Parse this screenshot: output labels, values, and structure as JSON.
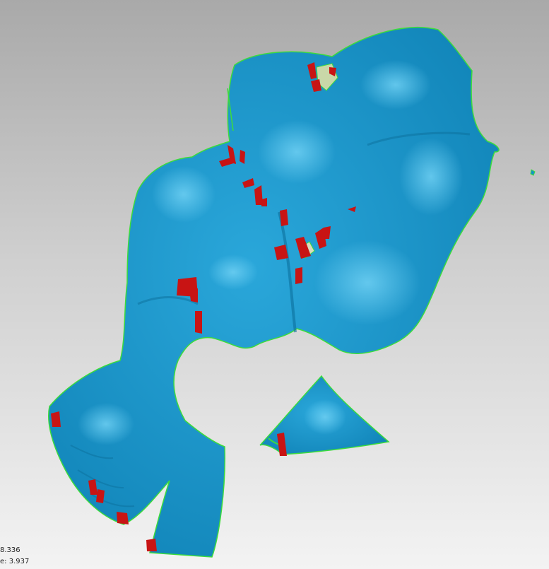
{
  "viewport": {
    "background_top": "#a9a9a9",
    "background_bottom": "#f3f3f3",
    "mesh_color": "#1593c7",
    "mesh_highlight": "#5cc6ee",
    "boundary_color": "#3cdc3c",
    "defect_color": "#c81414"
  },
  "readout": {
    "line1": "8.336",
    "line2": "e: 3.937"
  }
}
